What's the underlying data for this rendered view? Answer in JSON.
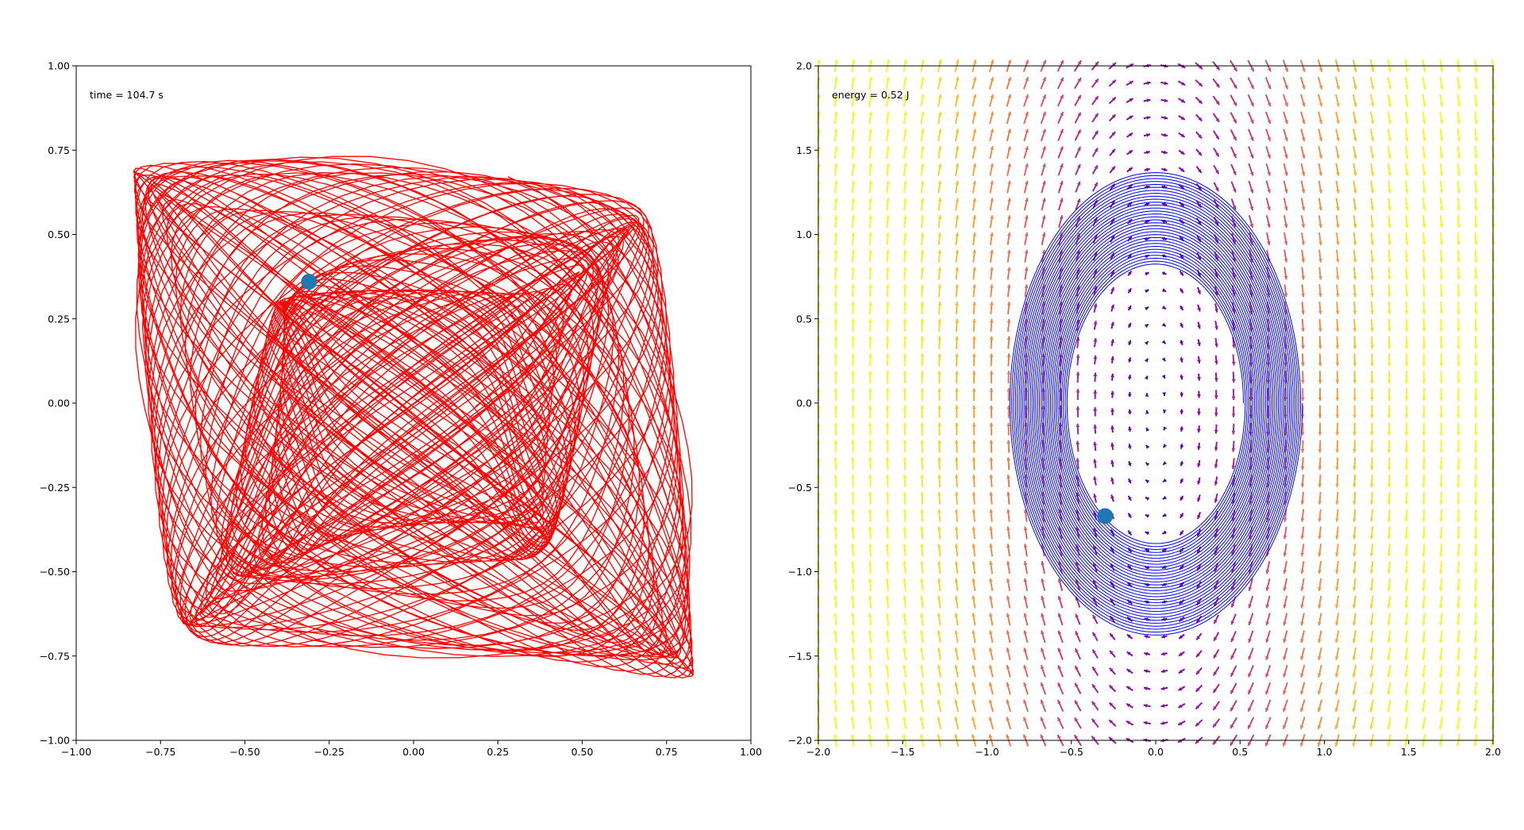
{
  "chart_data": [
    {
      "type": "line",
      "xlim": [
        -1.0,
        1.0
      ],
      "ylim": [
        -1.0,
        1.0
      ],
      "grid": false,
      "xticks": [
        -1.0,
        -0.75,
        -0.5,
        -0.25,
        0.0,
        0.25,
        0.5,
        0.75,
        1.0
      ],
      "yticks": [
        -1.0,
        -0.75,
        -0.5,
        -0.25,
        0.0,
        0.25,
        0.5,
        0.75,
        1.0
      ],
      "xtick_labels": [
        "−1.00",
        "−0.75",
        "−0.50",
        "−0.25",
        "0.00",
        "0.25",
        "0.50",
        "0.75",
        "1.00"
      ],
      "ytick_labels": [
        "−1.00",
        "−0.75",
        "−0.50",
        "−0.25",
        "0.00",
        "0.25",
        "0.50",
        "0.75",
        "1.00"
      ],
      "annotation": "time = 104.7 s",
      "trajectory_color": "#ff0000",
      "marker": {
        "x": -0.31,
        "y": 0.36,
        "color": "#1f77b4"
      }
    },
    {
      "type": "quiver",
      "xlim": [
        -2.0,
        2.0
      ],
      "ylim": [
        -2.0,
        2.0
      ],
      "grid": false,
      "xticks": [
        -2.0,
        -1.5,
        -1.0,
        -0.5,
        0.0,
        0.5,
        1.0,
        1.5,
        2.0
      ],
      "yticks": [
        -2.0,
        -1.5,
        -1.0,
        -0.5,
        0.0,
        0.5,
        1.0,
        1.5,
        2.0
      ],
      "xtick_labels": [
        "−2.0",
        "−1.5",
        "−1.0",
        "−0.5",
        "0.0",
        "0.5",
        "1.0",
        "1.5",
        "2.0"
      ],
      "ytick_labels": [
        "−2.0",
        "−1.5",
        "−1.0",
        "−0.5",
        "0.0",
        "0.5",
        "1.0",
        "1.5",
        "2.0"
      ],
      "annotation": "energy = 0.52 J",
      "trajectory_color": "#0000ff",
      "colormap": "plasma",
      "orbit": {
        "inner": {
          "a": 0.52,
          "b": 0.82
        },
        "outer": {
          "a": 0.87,
          "b": 1.38
        }
      },
      "marker": {
        "x": -0.3,
        "y": -0.67,
        "color": "#1f77b4"
      }
    }
  ]
}
